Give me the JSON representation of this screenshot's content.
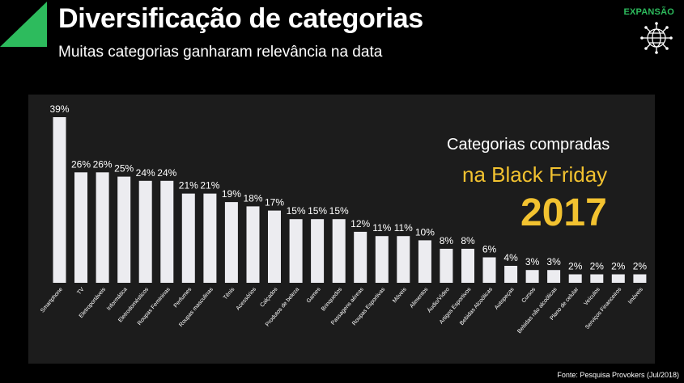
{
  "header": {
    "title": "Diversificação de categorias",
    "subtitle": "Muitas categorias ganharam relevância na data",
    "brand": "EXPANSÃO",
    "brand_icon": "globe-icon",
    "accent_color": "#2dbb5d"
  },
  "highlight": {
    "line1": "Categorias compradas",
    "line2": "na Black Friday",
    "year": "2017",
    "color": "#f2c230"
  },
  "source": "Fonte: Pesquisa Provokers (Jul/2018)",
  "chart_data": {
    "type": "bar",
    "title": "",
    "xlabel": "",
    "ylabel": "",
    "ylim": [
      0,
      40
    ],
    "grid": false,
    "bar_color": "#ececf0",
    "value_suffix": "%",
    "categories": [
      "Smartphone",
      "TV",
      "Eletroportáveis",
      "Informática",
      "Eletrodomésticos",
      "Roupas Femininas",
      "Perfumes",
      "Roupas masculinas",
      "Tênis",
      "Acessórios",
      "Calçados",
      "Produtos de beleza",
      "Games",
      "Brinquedos",
      "Passagens aéreas",
      "Roupas Esportivas",
      "Móveis",
      "Alimentos",
      "Áudio/Vídeo",
      "Artigos Esportivos",
      "Bebidas Alcoólicas",
      "Autopeças",
      "Cursos",
      "Bebidas não alcoólicas",
      "Plano de celular",
      "Veículos",
      "Serviços Financeiros",
      "Imóveis"
    ],
    "values": [
      39,
      26,
      26,
      25,
      24,
      24,
      21,
      21,
      19,
      18,
      17,
      15,
      15,
      15,
      12,
      11,
      11,
      10,
      8,
      8,
      6,
      4,
      3,
      3,
      2,
      2,
      2,
      2
    ]
  }
}
